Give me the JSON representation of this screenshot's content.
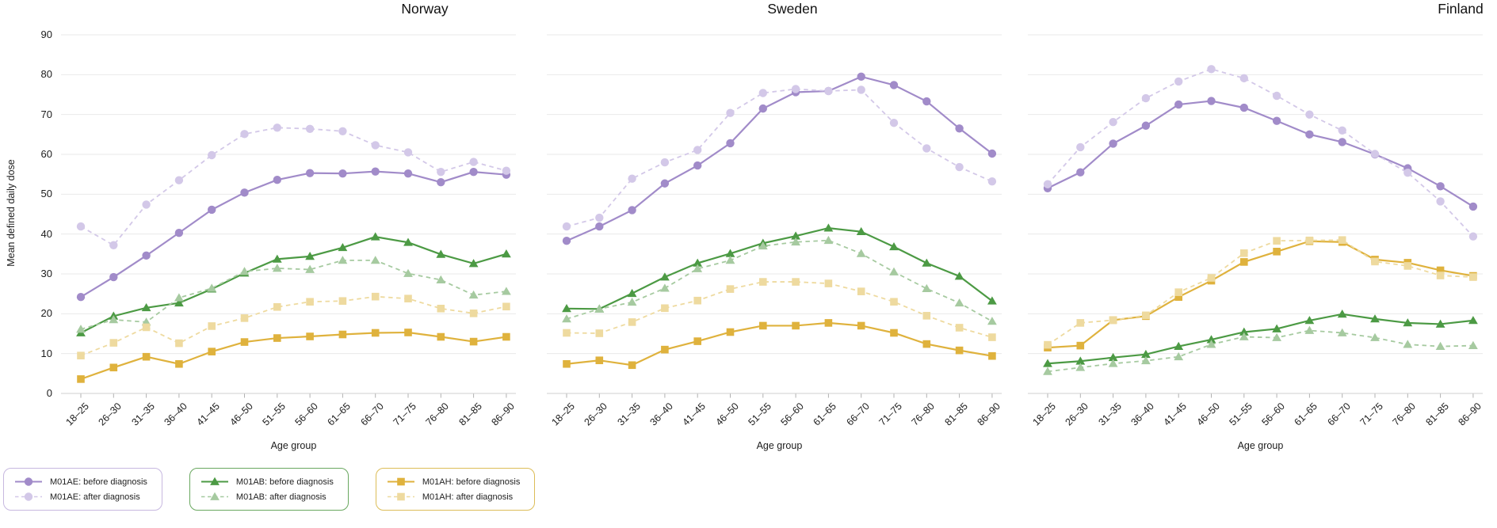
{
  "figure": {
    "ylabel": "Mean defined daily dose",
    "xlabel": "Age group",
    "background": "#ffffff",
    "grid_color": "#e9e9e9",
    "axis_color": "#cfcfcf",
    "tick_color": "#b0b0b0"
  },
  "series_styles": [
    {
      "name": "M01AE: before diagnosis",
      "color": "#a18bc9",
      "marker": "circle",
      "line": "solid"
    },
    {
      "name": "M01AE: after diagnosis",
      "color": "#d3c8e8",
      "marker": "circle",
      "line": "dashed"
    },
    {
      "name": "M01AB: before diagnosis",
      "color": "#4c9a44",
      "marker": "triangle",
      "line": "solid"
    },
    {
      "name": "M01AB: after diagnosis",
      "color": "#a6caa0",
      "marker": "triangle",
      "line": "dashed"
    },
    {
      "name": "M01AH: before diagnosis",
      "color": "#dfb23d",
      "marker": "square",
      "line": "solid"
    },
    {
      "name": "M01AH: after diagnosis",
      "color": "#eeda9f",
      "marker": "square",
      "line": "dashed"
    }
  ],
  "chart_data": [
    {
      "type": "line",
      "title": "Norway",
      "xlabel": "Age group",
      "ylabel": "Mean defined daily dose",
      "ylim": [
        0,
        90
      ],
      "yticks": [
        0,
        10,
        20,
        30,
        40,
        50,
        60,
        70,
        80,
        90
      ],
      "grid": true,
      "categories": [
        "18–25",
        "26–30",
        "31–35",
        "36–40",
        "41–45",
        "46–50",
        "51–55",
        "56–60",
        "61–65",
        "66–70",
        "71–75",
        "76–80",
        "81–85",
        "86–90"
      ],
      "series": [
        {
          "name": "M01AE: before diagnosis",
          "values": [
            24.2,
            29.2,
            34.6,
            40.3,
            46.1,
            50.4,
            53.6,
            55.3,
            55.2,
            55.7,
            55.2,
            53.0,
            55.6,
            54.9
          ]
        },
        {
          "name": "M01AE: after diagnosis",
          "values": [
            41.9,
            37.2,
            47.4,
            53.5,
            59.8,
            65.1,
            66.7,
            66.4,
            65.8,
            62.3,
            60.5,
            55.6,
            58.1,
            55.9
          ]
        },
        {
          "name": "M01AB: before diagnosis",
          "values": [
            15.2,
            19.4,
            21.5,
            22.7,
            26.2,
            30.2,
            33.7,
            34.4,
            36.6,
            39.3,
            37.9,
            34.9,
            32.6,
            35.0
          ]
        },
        {
          "name": "M01AB: after diagnosis",
          "values": [
            16.1,
            18.5,
            17.9,
            24.0,
            26.4,
            30.6,
            31.4,
            31.1,
            33.4,
            33.4,
            30.1,
            28.5,
            24.7,
            25.6
          ]
        },
        {
          "name": "M01AH: before diagnosis",
          "values": [
            3.6,
            6.5,
            9.2,
            7.4,
            10.5,
            12.9,
            13.9,
            14.3,
            14.8,
            15.2,
            15.3,
            14.2,
            13.0,
            14.2
          ]
        },
        {
          "name": "M01AH: after diagnosis",
          "values": [
            9.5,
            12.7,
            16.6,
            12.6,
            16.9,
            18.9,
            21.7,
            23.0,
            23.2,
            24.3,
            23.8,
            21.3,
            20.1,
            21.8
          ]
        }
      ]
    },
    {
      "type": "line",
      "title": "Sweden",
      "xlabel": "Age group",
      "ylim": [
        0,
        90
      ],
      "yticks": [
        0,
        10,
        20,
        30,
        40,
        50,
        60,
        70,
        80,
        90
      ],
      "grid": true,
      "categories": [
        "18–25",
        "26–30",
        "31–35",
        "36–40",
        "41–45",
        "46–50",
        "51–55",
        "56–60",
        "61–65",
        "66–70",
        "71–75",
        "76–80",
        "81–85",
        "86–90"
      ],
      "series": [
        {
          "name": "M01AE: before diagnosis",
          "values": [
            38.3,
            41.9,
            46.0,
            52.7,
            57.2,
            62.8,
            71.5,
            75.6,
            75.9,
            79.5,
            77.4,
            73.3,
            66.5,
            60.2
          ]
        },
        {
          "name": "M01AE: after diagnosis",
          "values": [
            41.9,
            44.1,
            53.9,
            58.0,
            61.1,
            70.4,
            75.4,
            76.4,
            75.9,
            76.2,
            67.9,
            61.5,
            56.8,
            53.2
          ]
        },
        {
          "name": "M01AB: before diagnosis",
          "values": [
            21.3,
            21.2,
            25.1,
            29.2,
            32.7,
            35.1,
            37.7,
            39.5,
            41.5,
            40.6,
            36.8,
            32.7,
            29.4,
            23.2
          ]
        },
        {
          "name": "M01AB: after diagnosis",
          "values": [
            18.7,
            21.2,
            22.9,
            26.4,
            31.3,
            33.4,
            37.0,
            38.0,
            38.4,
            35.1,
            30.5,
            26.3,
            22.7,
            18.1
          ]
        },
        {
          "name": "M01AH: before diagnosis",
          "values": [
            7.4,
            8.3,
            7.1,
            11.0,
            13.1,
            15.4,
            17.0,
            17.0,
            17.7,
            17.0,
            15.2,
            12.4,
            10.8,
            9.4
          ]
        },
        {
          "name": "M01AH: after diagnosis",
          "values": [
            15.2,
            15.1,
            17.9,
            21.4,
            23.3,
            26.2,
            28.0,
            28.0,
            27.6,
            25.6,
            23.0,
            19.5,
            16.5,
            14.1
          ]
        }
      ]
    },
    {
      "type": "line",
      "title": "Finland",
      "xlabel": "Age group",
      "ylim": [
        0,
        90
      ],
      "yticks": [
        0,
        10,
        20,
        30,
        40,
        50,
        60,
        70,
        80,
        90
      ],
      "grid": true,
      "categories": [
        "18–25",
        "26–30",
        "31–35",
        "36–40",
        "41–45",
        "46–50",
        "51–55",
        "56–60",
        "61–65",
        "66–70",
        "71–75",
        "76–80",
        "81–85",
        "86–90"
      ],
      "series": [
        {
          "name": "M01AE: before diagnosis",
          "values": [
            51.5,
            55.5,
            62.7,
            67.2,
            72.5,
            73.4,
            71.7,
            68.4,
            65.0,
            63.1,
            60.0,
            56.5,
            52.0,
            46.9
          ]
        },
        {
          "name": "M01AE: after diagnosis",
          "values": [
            52.5,
            61.8,
            68.1,
            74.1,
            78.3,
            81.4,
            79.1,
            74.7,
            70.0,
            66.0,
            60.1,
            55.4,
            48.2,
            39.4
          ]
        },
        {
          "name": "M01AB: before diagnosis",
          "values": [
            7.5,
            8.1,
            9.0,
            9.8,
            11.8,
            13.5,
            15.4,
            16.2,
            18.3,
            19.9,
            18.7,
            17.7,
            17.4,
            18.3
          ]
        },
        {
          "name": "M01AB: after diagnosis",
          "values": [
            5.5,
            6.5,
            7.5,
            8.2,
            9.2,
            12.3,
            14.2,
            14.0,
            15.8,
            15.2,
            14.0,
            12.3,
            11.8,
            12.0
          ]
        },
        {
          "name": "M01AH: before diagnosis",
          "values": [
            11.5,
            12.0,
            18.4,
            19.4,
            24.2,
            28.3,
            33.0,
            35.6,
            38.2,
            38.0,
            33.6,
            32.8,
            30.9,
            29.5
          ]
        },
        {
          "name": "M01AH: after diagnosis",
          "values": [
            12.2,
            17.7,
            18.4,
            19.6,
            25.4,
            29.0,
            35.2,
            38.3,
            38.4,
            38.5,
            33.1,
            32.0,
            29.6,
            29.2
          ]
        }
      ]
    }
  ],
  "legend": {
    "boxes": [
      {
        "border_color": "#c7b8e0",
        "entries": [
          "M01AE: before diagnosis",
          "M01AE: after diagnosis"
        ]
      },
      {
        "border_color": "#69a75f",
        "entries": [
          "M01AB: before diagnosis",
          "M01AB: after diagnosis"
        ]
      },
      {
        "border_color": "#dcbd58",
        "entries": [
          "M01AH: before diagnosis",
          "M01AH: after diagnosis"
        ]
      }
    ]
  }
}
